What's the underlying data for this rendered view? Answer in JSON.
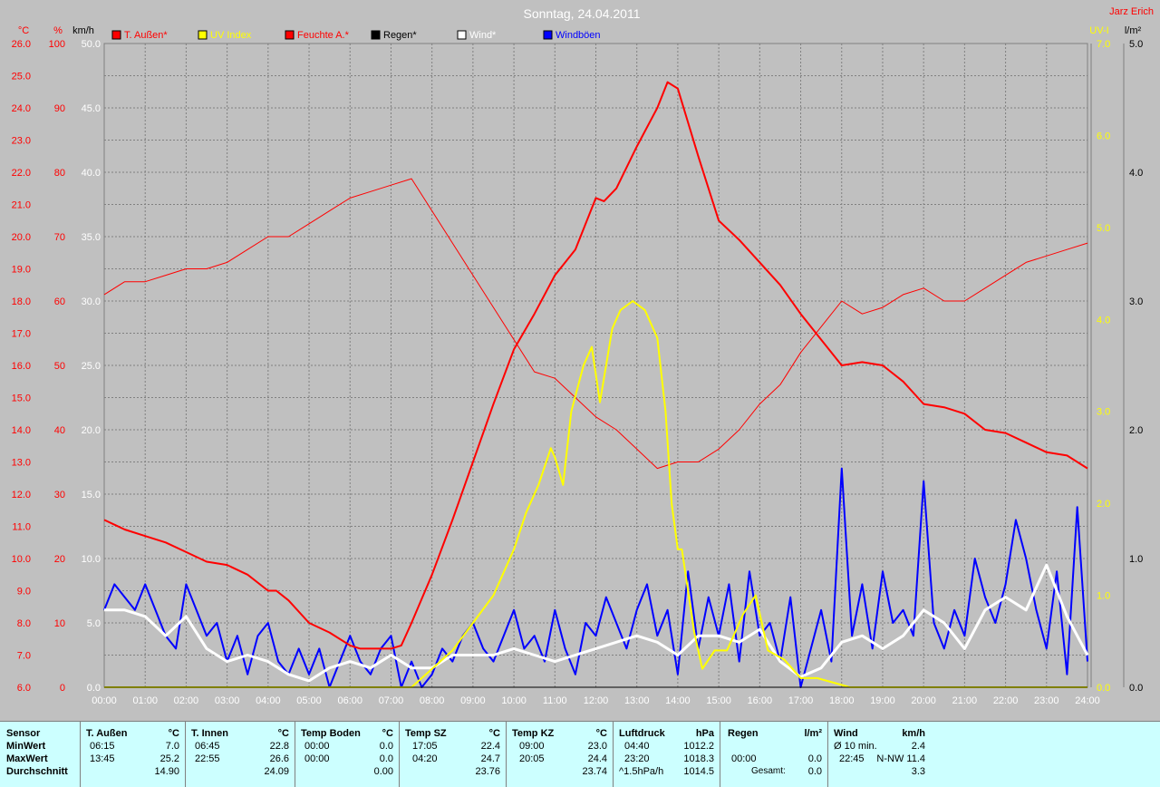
{
  "header": {
    "title": "Sonntag, 24.04.2011",
    "author": "Jarz Erich"
  },
  "colors": {
    "background": "#c0c0c0",
    "plot_bg": "#c0c0c0",
    "temp": "#ff0000",
    "uv": "#ffff00",
    "humidity": "#ff0000",
    "rain": "#000000",
    "wind": "#ffffff",
    "gust": "#0000ff",
    "stats_bg": "#ccffff"
  },
  "chart_data": {
    "type": "line",
    "title": "Sonntag, 24.04.2011",
    "legend": [
      {
        "label": "T. Außen*",
        "color": "#ff0000"
      },
      {
        "label": "UV Index",
        "color": "#ffff00"
      },
      {
        "label": "Feuchte A.*",
        "color": "#ff0000"
      },
      {
        "label": "Regen*",
        "color": "#000000"
      },
      {
        "label": "Wind*",
        "color": "#ffffff"
      },
      {
        "label": "Windböen",
        "color": "#0000ff"
      }
    ],
    "grid": true,
    "x_ticks": [
      "00:00",
      "01:00",
      "02:00",
      "03:00",
      "04:00",
      "05:00",
      "06:00",
      "07:00",
      "08:00",
      "09:00",
      "10:00",
      "11:00",
      "12:00",
      "13:00",
      "14:00",
      "15:00",
      "16:00",
      "17:00",
      "18:00",
      "19:00",
      "20:00",
      "21:00",
      "22:00",
      "23:00",
      "24:00"
    ],
    "axes": {
      "temp": {
        "unit": "°C",
        "range": [
          6.0,
          26.0
        ],
        "ticks": [
          "26.0",
          "25.0",
          "24.0",
          "23.0",
          "22.0",
          "21.0",
          "20.0",
          "19.0",
          "18.0",
          "17.0",
          "16.0",
          "15.0",
          "14.0",
          "13.0",
          "12.0",
          "11.0",
          "10.0",
          "9.0",
          "8.0",
          "7.0",
          "6.0"
        ]
      },
      "humidity": {
        "unit": "%",
        "range": [
          0,
          100
        ],
        "ticks": [
          "100",
          "90",
          "80",
          "70",
          "60",
          "50",
          "40",
          "30",
          "20",
          "10",
          "0"
        ]
      },
      "wind": {
        "unit": "km/h",
        "range": [
          0,
          50
        ],
        "ticks": [
          "50.0",
          "45.0",
          "40.0",
          "35.0",
          "30.0",
          "25.0",
          "20.0",
          "15.0",
          "10.0",
          "5.0",
          "0.0"
        ]
      },
      "uv": {
        "unit": "UV-I",
        "range": [
          0,
          7
        ],
        "ticks": [
          "7.0",
          "6.0",
          "5.0",
          "4.0",
          "3.0",
          "2.0",
          "1.0",
          "0.0"
        ]
      },
      "rain": {
        "unit": "l/m²",
        "range": [
          0,
          5
        ],
        "ticks": [
          "5.0",
          "4.0",
          "3.0",
          "2.0",
          "1.0",
          "0.0"
        ]
      }
    },
    "series": [
      {
        "name": "T. Außen*",
        "axis": "temp",
        "color": "#ff0000",
        "width": 2,
        "x": [
          0,
          0.5,
          1,
          1.5,
          2,
          2.5,
          3,
          3.5,
          4,
          4.2,
          4.5,
          5,
          5.5,
          6,
          6.25,
          6.5,
          7,
          7.25,
          7.5,
          8,
          8.5,
          9,
          9.5,
          10,
          10.5,
          11,
          11.5,
          12,
          12.2,
          12.5,
          13,
          13.5,
          13.75,
          14,
          14.5,
          15,
          15.5,
          16,
          16.5,
          17,
          17.5,
          18,
          18.5,
          19,
          19.5,
          20,
          20.5,
          21,
          21.5,
          22,
          22.5,
          23,
          23.5,
          24
        ],
        "y": [
          11.2,
          10.9,
          10.7,
          10.5,
          10.2,
          9.9,
          9.8,
          9.5,
          9.0,
          9.0,
          8.7,
          8.0,
          7.7,
          7.3,
          7.2,
          7.2,
          7.2,
          7.3,
          8.0,
          9.5,
          11.2,
          13.0,
          14.8,
          16.5,
          17.6,
          18.8,
          19.6,
          21.2,
          21.1,
          21.5,
          22.8,
          24.0,
          24.8,
          24.6,
          22.5,
          20.5,
          19.9,
          19.2,
          18.5,
          17.6,
          16.8,
          16.0,
          16.1,
          16.0,
          15.5,
          14.8,
          14.7,
          14.5,
          14.0,
          13.9,
          13.6,
          13.3,
          13.2,
          12.8
        ]
      },
      {
        "name": "Feuchte A.*",
        "axis": "humidity",
        "color": "#ff0000",
        "width": 1,
        "x": [
          0,
          0.5,
          1,
          1.5,
          2,
          2.5,
          3,
          3.5,
          4,
          4.5,
          5,
          5.5,
          6,
          6.5,
          7,
          7.5,
          8,
          8.5,
          9,
          9.5,
          10,
          10.5,
          11,
          11.5,
          12,
          12.5,
          13,
          13.5,
          14,
          14.25,
          14.5,
          15,
          15.5,
          16,
          16.5,
          17,
          17.5,
          18,
          18.5,
          19,
          19.5,
          20,
          20.5,
          21,
          21.5,
          22,
          22.5,
          23,
          23.5,
          24
        ],
        "y": [
          61,
          63,
          63,
          64,
          65,
          65,
          66,
          68,
          70,
          70,
          72,
          74,
          76,
          77,
          78,
          79,
          74,
          69,
          64,
          59,
          54,
          49,
          48,
          45,
          42,
          40,
          37,
          34,
          35,
          35,
          35,
          37,
          40,
          44,
          47,
          52,
          56,
          60,
          58,
          59,
          61,
          62,
          60,
          60,
          62,
          64,
          66,
          67,
          68,
          69
        ]
      },
      {
        "name": "UV Index",
        "axis": "uv",
        "color": "#ffff00",
        "width": 2,
        "x": [
          0,
          7.5,
          8,
          8.5,
          9,
          9.5,
          10,
          10.3,
          10.6,
          10.9,
          11,
          11.2,
          11.4,
          11.7,
          11.9,
          12.1,
          12.4,
          12.6,
          12.9,
          13.2,
          13.5,
          13.7,
          13.85,
          14,
          14.1,
          14.4,
          14.6,
          14.9,
          15.2,
          15.6,
          15.9,
          16.2,
          16.6,
          17,
          17.4,
          17.8,
          18.2,
          18.6,
          19,
          20,
          21,
          22,
          23,
          24
        ],
        "y": [
          0,
          0,
          0.2,
          0.4,
          0.7,
          1.0,
          1.5,
          1.9,
          2.2,
          2.6,
          2.5,
          2.2,
          3.0,
          3.5,
          3.7,
          3.1,
          3.9,
          4.1,
          4.2,
          4.1,
          3.8,
          3.0,
          2.0,
          1.5,
          1.5,
          0.6,
          0.2,
          0.4,
          0.4,
          0.8,
          1.0,
          0.4,
          0.3,
          0.1,
          0.1,
          0.05,
          0,
          0,
          0,
          0,
          0,
          0,
          0,
          0
        ]
      },
      {
        "name": "Wind*",
        "axis": "wind",
        "color": "#ffffff",
        "width": 3,
        "x": [
          0,
          0.5,
          1,
          1.5,
          2,
          2.5,
          3,
          3.5,
          4,
          4.5,
          5,
          5.5,
          6,
          6.5,
          7,
          7.5,
          8,
          8.5,
          9,
          9.5,
          10,
          10.5,
          11,
          11.5,
          12,
          12.5,
          13,
          13.5,
          14,
          14.5,
          15,
          15.5,
          16,
          16.5,
          17,
          17.5,
          18,
          18.5,
          19,
          19.5,
          20,
          20.5,
          21,
          21.5,
          22,
          22.5,
          23,
          23.5,
          24
        ],
        "y": [
          6.0,
          6.0,
          5.5,
          4.0,
          5.5,
          3.0,
          2.0,
          2.5,
          2.0,
          1.0,
          0.5,
          1.5,
          2.0,
          1.5,
          2.5,
          1.5,
          1.5,
          2.5,
          2.5,
          2.5,
          3.0,
          2.5,
          2.0,
          2.5,
          3.0,
          3.5,
          4.0,
          3.5,
          2.5,
          4.0,
          4.0,
          3.5,
          4.5,
          2.0,
          0.8,
          1.5,
          3.5,
          4.0,
          3.0,
          4.0,
          6.0,
          5.0,
          3.0,
          6.0,
          7.0,
          6.0,
          9.5,
          5.5,
          2.5
        ]
      },
      {
        "name": "Windböen",
        "axis": "wind",
        "color": "#0000ff",
        "width": 2,
        "x": [
          0,
          0.25,
          0.5,
          0.75,
          1,
          1.25,
          1.5,
          1.75,
          2,
          2.25,
          2.5,
          2.75,
          3,
          3.25,
          3.5,
          3.75,
          4,
          4.25,
          4.5,
          4.75,
          5,
          5.25,
          5.5,
          5.75,
          6,
          6.25,
          6.5,
          6.75,
          7,
          7.25,
          7.5,
          7.75,
          8,
          8.25,
          8.5,
          8.75,
          9,
          9.25,
          9.5,
          9.75,
          10,
          10.25,
          10.5,
          10.75,
          11,
          11.25,
          11.5,
          11.75,
          12,
          12.25,
          12.5,
          12.75,
          13,
          13.25,
          13.5,
          13.75,
          14,
          14.25,
          14.5,
          14.75,
          15,
          15.25,
          15.5,
          15.75,
          16,
          16.25,
          16.5,
          16.75,
          17,
          17.25,
          17.5,
          17.75,
          18,
          18.25,
          18.5,
          18.75,
          19,
          19.25,
          19.5,
          19.75,
          20,
          20.25,
          20.5,
          20.75,
          21,
          21.25,
          21.5,
          21.75,
          22,
          22.25,
          22.5,
          22.75,
          23,
          23.25,
          23.5,
          23.75,
          24
        ],
        "y": [
          6,
          8,
          7,
          6,
          8,
          6,
          4,
          3,
          8,
          6,
          4,
          5,
          2,
          4,
          1,
          4,
          5,
          2,
          1,
          3,
          1,
          3,
          0,
          2,
          4,
          2,
          1,
          3,
          4,
          0,
          2,
          0,
          1,
          3,
          2,
          4,
          5,
          3,
          2,
          4,
          6,
          3,
          4,
          2,
          6,
          3,
          1,
          5,
          4,
          7,
          5,
          3,
          6,
          8,
          4,
          6,
          1,
          9,
          3,
          7,
          4,
          8,
          2,
          9,
          4,
          5,
          2,
          7,
          0,
          3,
          6,
          2,
          17,
          4,
          8,
          3,
          9,
          5,
          6,
          4,
          16,
          5,
          3,
          6,
          4,
          10,
          7,
          5,
          8,
          13,
          10,
          6,
          3,
          9,
          1,
          14,
          2
        ]
      },
      {
        "name": "Regen*",
        "axis": "rain",
        "color": "#000000",
        "width": 1,
        "x": [
          0,
          24
        ],
        "y": [
          0,
          0
        ]
      }
    ]
  },
  "stats": {
    "col_sensor": {
      "h1": "Sensor",
      "r1": "MinWert",
      "r2": "MaxWert",
      "r3": "Durchschnitt"
    },
    "col_aussen": {
      "h1": "T. Außen",
      "h2": "°C",
      "r1a": "06:15",
      "r1b": "7.0",
      "r2a": "13:45",
      "r2b": "25.2",
      "r3b": "14.90"
    },
    "col_innen": {
      "h1": "T. Innen",
      "h2": "°C",
      "r1a": "06:45",
      "r1b": "22.8",
      "r2a": "22:55",
      "r2b": "26.6",
      "r3b": "24.09"
    },
    "col_boden": {
      "h1": "Temp Boden",
      "h2": "°C",
      "r1a": "00:00",
      "r1b": "0.0",
      "r2a": "00:00",
      "r2b": "0.0",
      "r3b": "0.00"
    },
    "col_sz": {
      "h1": "Temp SZ",
      "h2": "°C",
      "r1a": "17:05",
      "r1b": "22.4",
      "r2a": "04:20",
      "r2b": "24.7",
      "r3b": "23.76"
    },
    "col_kz": {
      "h1": "Temp KZ",
      "h2": "°C",
      "r1a": "09:00",
      "r1b": "23.0",
      "r2a": "20:05",
      "r2b": "24.4",
      "r3b": "23.74"
    },
    "col_druck": {
      "h1": "Luftdruck",
      "h2": "hPa",
      "r1a": "04:40",
      "r1b": "1012.2",
      "r2a": "23:20",
      "r2b": "1018.3",
      "r3a": "^1.5hPa/h",
      "r3b": "1014.5"
    },
    "col_regen": {
      "h1": "Regen",
      "h2": "l/m²",
      "r2a": "00:00",
      "r2b": "0.0",
      "r3a": "Gesamt:",
      "r3b": "0.0"
    },
    "col_wind": {
      "h1": "Wind",
      "h2": "km/h",
      "r1a": "Ø 10 min.",
      "r1b": "2.4",
      "r2a": "22:45",
      "r2b": "N-NW 11.4",
      "r3b": "3.3"
    }
  }
}
